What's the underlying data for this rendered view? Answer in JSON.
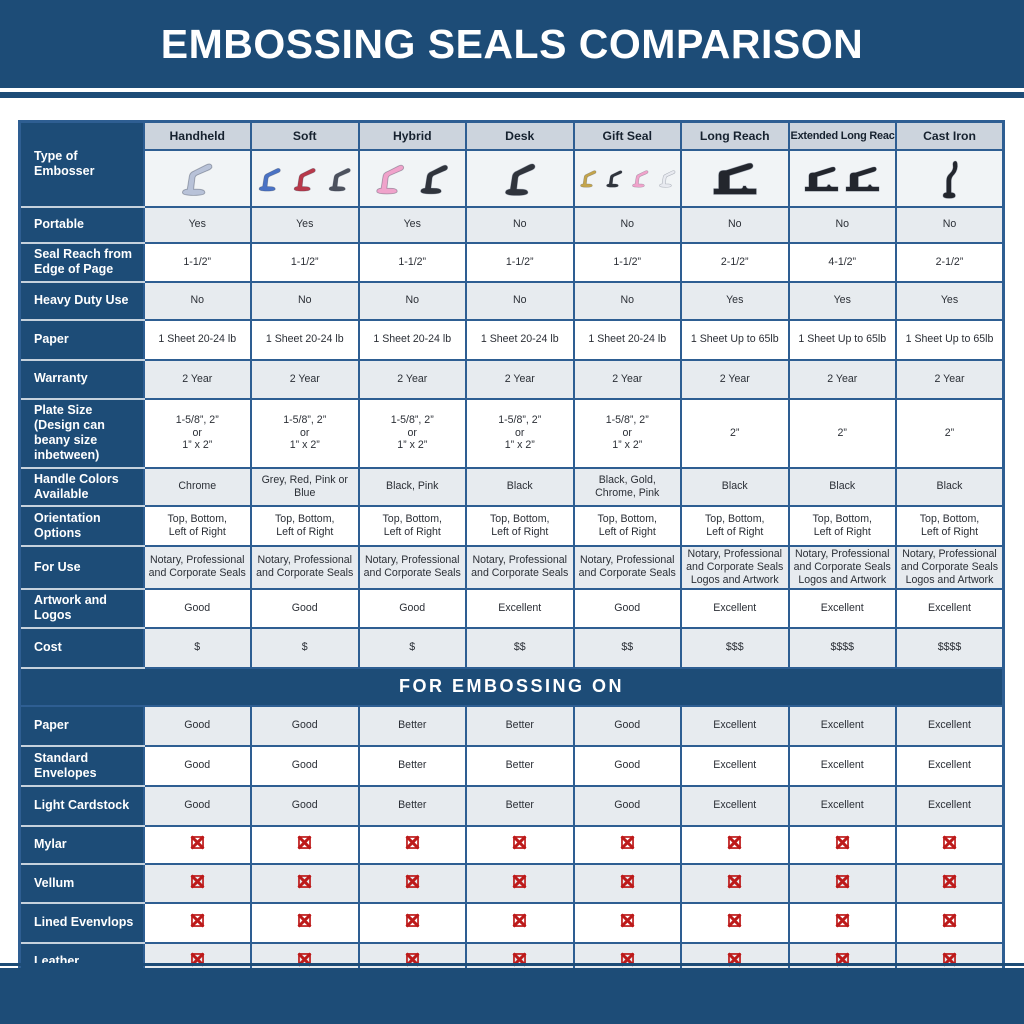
{
  "title": "EMBOSSING SEALS COMPARISON",
  "section_band": "FOR EMBOSSING ON",
  "colors": {
    "navy": "#1d4c77",
    "border": "#2e5e92",
    "header_cell": "#ccd4dd",
    "row_shade": "#e7ebef",
    "label_separator": "#c6d2dd",
    "red_x": "#bd1a1a"
  },
  "table": {
    "corner_label": "Type of Embosser",
    "columns": [
      "Handheld",
      "Soft",
      "Hybrid",
      "Desk",
      "Gift Seal",
      "Long Reach",
      "Extended Long Reach",
      "Cast Iron"
    ],
    "embossers": [
      {
        "column": "Handheld",
        "shape": "plier",
        "colors": [
          "#b8c2d8"
        ],
        "size": 44
      },
      {
        "column": "Soft",
        "shape": "plier",
        "colors": [
          "#4a72c4",
          "#b8394a",
          "#4d525e"
        ],
        "size": 33
      },
      {
        "column": "Hybrid",
        "shape": "plier",
        "colors": [
          "#f0a3cb",
          "#30343c"
        ],
        "size": 40
      },
      {
        "column": "Desk",
        "shape": "plier",
        "colors": [
          "#30343c"
        ],
        "size": 44
      },
      {
        "column": "Gift Seal",
        "shape": "plier",
        "colors": [
          "#c3a44c",
          "#30343c",
          "#f0a3cb",
          "#e8eaf0"
        ],
        "size": 28
      },
      {
        "column": "Long Reach",
        "shape": "press",
        "colors": [
          "#23262d"
        ],
        "size": 40
      },
      {
        "column": "Extended Long Reach",
        "shape": "press",
        "colors": [
          "#23262d",
          "#23262d"
        ],
        "size": 31
      },
      {
        "column": "Cast Iron",
        "shape": "upright",
        "colors": [
          "#23262d"
        ],
        "size": 44
      }
    ],
    "spec_rows": [
      {
        "label": "Portable",
        "values": [
          "Yes",
          "Yes",
          "Yes",
          "No",
          "No",
          "No",
          "No",
          "No"
        ]
      },
      {
        "label": "Seal Reach from Edge of Page",
        "values": [
          "1-1/2”",
          "1-1/2”",
          "1-1/2”",
          "1-1/2”",
          "1-1/2”",
          "2-1/2”",
          "4-1/2”",
          "2-1/2”"
        ]
      },
      {
        "label": "Heavy Duty Use",
        "values": [
          "No",
          "No",
          "No",
          "No",
          "No",
          "Yes",
          "Yes",
          "Yes"
        ]
      },
      {
        "label": "Paper",
        "values": [
          "1 Sheet 20-24 lb",
          "1 Sheet 20-24 lb",
          "1 Sheet 20-24 lb",
          "1 Sheet 20-24 lb",
          "1 Sheet 20-24 lb",
          "1 Sheet Up to 65lb",
          "1 Sheet Up to 65lb",
          "1 Sheet Up to 65lb"
        ]
      },
      {
        "label": "Warranty",
        "values": [
          "2 Year",
          "2 Year",
          "2 Year",
          "2 Year",
          "2 Year",
          "2 Year",
          "2 Year",
          "2 Year"
        ]
      },
      {
        "label": "Plate Size (Design can beany size inbetween)",
        "values": [
          "1-5/8”, 2”\nor\n1” x 2”",
          "1-5/8”, 2”\nor\n1” x 2”",
          "1-5/8”, 2”\nor\n1” x 2”",
          "1-5/8”, 2”\nor\n1” x 2”",
          "1-5/8”, 2”\nor\n1” x 2”",
          "2”",
          "2”",
          "2”"
        ]
      },
      {
        "label": "Handle Colors Available",
        "values": [
          "Chrome",
          "Grey, Red, Pink or Blue",
          "Black, Pink",
          "Black",
          "Black, Gold, Chrome, Pink",
          "Black",
          "Black",
          "Black"
        ]
      },
      {
        "label": "Orientation Options",
        "values": [
          "Top, Bottom,\nLeft of Right",
          "Top, Bottom,\nLeft of Right",
          "Top, Bottom,\nLeft of Right",
          "Top, Bottom,\nLeft of Right",
          "Top, Bottom,\nLeft of Right",
          "Top, Bottom,\nLeft of Right",
          "Top, Bottom,\nLeft of Right",
          "Top, Bottom,\nLeft of Right"
        ]
      },
      {
        "label": "For Use",
        "values": [
          "Notary, Professional\nand Corporate Seals",
          "Notary, Professional\nand Corporate Seals",
          "Notary, Professional\nand Corporate Seals",
          "Notary, Professional\nand Corporate Seals",
          "Notary, Professional\nand Corporate Seals",
          "Notary, Professional\nand Corporate Seals\nLogos and Artwork",
          "Notary, Professional\nand Corporate Seals\nLogos and Artwork",
          "Notary, Professional\nand Corporate Seals\nLogos and Artwork"
        ]
      },
      {
        "label": "Artwork and Logos",
        "values": [
          "Good",
          "Good",
          "Good",
          "Excellent",
          "Good",
          "Excellent",
          "Excellent",
          "Excellent"
        ]
      },
      {
        "label": "Cost",
        "values": [
          "$",
          "$",
          "$",
          "$$",
          "$$",
          "$$$",
          "$$$$",
          "$$$$"
        ]
      }
    ],
    "embossing_rows": [
      {
        "label": "Paper",
        "values": [
          "Good",
          "Good",
          "Better",
          "Better",
          "Good",
          "Excellent",
          "Excellent",
          "Excellent"
        ]
      },
      {
        "label": "Standard Envelopes",
        "values": [
          "Good",
          "Good",
          "Better",
          "Better",
          "Good",
          "Excellent",
          "Excellent",
          "Excellent"
        ]
      },
      {
        "label": "Light Cardstock",
        "values": [
          "Good",
          "Good",
          "Better",
          "Better",
          "Good",
          "Excellent",
          "Excellent",
          "Excellent"
        ]
      },
      {
        "label": "Mylar",
        "icon": "x-icon"
      },
      {
        "label": "Vellum",
        "icon": "x-icon"
      },
      {
        "label": "Lined Evenvlops",
        "icon": "x-icon"
      },
      {
        "label": "Leather",
        "icon": "x-icon"
      }
    ]
  }
}
